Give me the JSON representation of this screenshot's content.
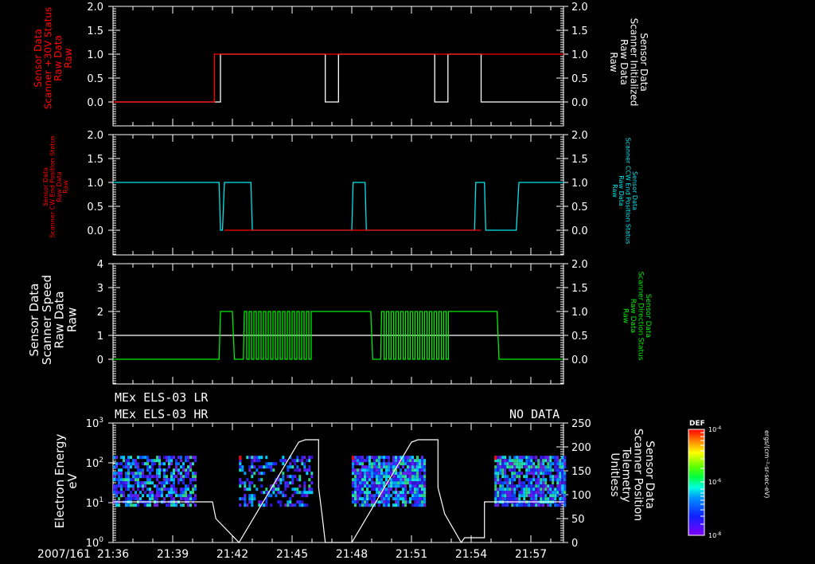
{
  "chart_data": [
    {
      "type": "line",
      "panel": 1,
      "left_ylabel": [
        "Sensor Data",
        "Scanner +30V Status",
        "Raw Data",
        "Raw"
      ],
      "left_ylabel_color": "#ff0000",
      "right_ylabel": [
        "Sensor Data",
        "Scanner Initialized",
        "Raw Data",
        "Raw"
      ],
      "right_ylabel_color": "#ffffff",
      "left_ticks": [
        "2.0",
        "1.5",
        "1.0",
        "0.5",
        "0.0"
      ],
      "right_ticks": [
        "2.0",
        "1.5",
        "1.0",
        "0.5",
        "0.0"
      ],
      "ylim": [
        -0.5,
        2.0
      ],
      "series": [
        {
          "name": "Scanner +30V Status",
          "color": "#ff0000",
          "x": [
            "21:36",
            "21:41:06",
            "21:41:06",
            "21:46:40",
            "21:46:40",
            "21:47:20",
            "21:52:10",
            "21:52:10",
            "21:52:50",
            "21:58:40"
          ],
          "values": [
            0,
            0,
            1,
            1,
            1,
            1,
            1,
            1,
            1,
            1
          ]
        },
        {
          "name": "Scanner Initialized",
          "color": "#ffffff",
          "x": [
            "21:36",
            "21:41:24",
            "21:41:24",
            "21:46:40",
            "21:46:40",
            "21:47:20",
            "21:47:20",
            "21:52:10",
            "21:52:10",
            "21:52:50",
            "21:52:50",
            "21:54:30",
            "21:54:30",
            "21:58:40"
          ],
          "values": [
            0,
            0,
            1,
            1,
            0,
            0,
            1,
            1,
            0,
            0,
            1,
            1,
            0,
            0
          ]
        }
      ]
    },
    {
      "type": "line",
      "panel": 2,
      "left_ylabel": [
        "Sensor Data",
        "Scanner CW End Position Status",
        "Raw Data",
        "Raw"
      ],
      "left_ylabel_color": "#ff0000",
      "right_ylabel": [
        "Sensor Data",
        "Scanner CCW End Position Status",
        "Raw Data",
        "Raw"
      ],
      "right_ylabel_color": "#00e5ee",
      "left_ticks": [
        "2.0",
        "1.5",
        "1.0",
        "0.5",
        "0.0"
      ],
      "right_ticks": [
        "2.0",
        "1.5",
        "1.0",
        "0.5",
        "0.0"
      ],
      "ylim": [
        -0.5,
        2.0
      ],
      "series": [
        {
          "name": "Scanner CW End Position Status",
          "color": "#ff0000",
          "x": [
            "21:41:36",
            "21:42:56",
            "21:48:00",
            "21:48:40",
            "21:54:10",
            "21:54:30"
          ],
          "values": [
            0,
            0,
            0,
            0,
            0,
            0
          ]
        },
        {
          "name": "Scanner CCW End Position Status",
          "color": "#00e5ee",
          "x": [
            "21:36",
            "21:41:20",
            "21:41:24",
            "21:41:30",
            "21:41:36",
            "21:42:56",
            "21:43:00",
            "21:48:00",
            "21:48:04",
            "21:48:40",
            "21:48:44",
            "21:54:10",
            "21:54:14",
            "21:54:40",
            "21:54:44",
            "21:56:16",
            "21:56:24",
            "21:58:40"
          ],
          "values": [
            1,
            1,
            0,
            0,
            1,
            1,
            0,
            0,
            1,
            1,
            0,
            0,
            1,
            1,
            0,
            0,
            1,
            1
          ]
        }
      ]
    },
    {
      "type": "line",
      "panel": 3,
      "left_ylabel": [
        "Sensor Data",
        "Scanner Speed",
        "Raw Data",
        "Raw"
      ],
      "left_ylabel_color": "#ffffff",
      "right_ylabel": [
        "Sensor Data",
        "Scanner Direction Status",
        "Raw Data",
        "Raw"
      ],
      "right_ylabel_color": "#00ee00",
      "left_ticks": [
        "4",
        "3",
        "2",
        "1",
        "0"
      ],
      "right_ticks": [
        "2.0",
        "1.5",
        "1.0",
        "0.5",
        "0.0"
      ],
      "ylim_left": [
        -1,
        4
      ],
      "ylim_right": [
        -0.5,
        2.0
      ],
      "series": [
        {
          "name": "Scanner Speed",
          "color": "#ffffff",
          "x": [
            "21:36",
            "21:58:40"
          ],
          "values": [
            1,
            1
          ]
        },
        {
          "name": "Scanner Direction Status",
          "color": "#00ee00",
          "description": "0 until ~21:41:20, 1 briefly, then rapid toggling 21:42–21:46:00, 1 plateau 21:46–21:48:00, toggling 21:48:30–21:51:30, 1 plateau to 21:54:20, then 0",
          "x": [
            "21:36",
            "21:41:20",
            "21:41:24",
            "21:42:00",
            "21:42:04",
            "21:42:30",
            "21:46:00",
            "21:46:04",
            "21:48:00",
            "21:48:04",
            "21:48:30",
            "21:51:30",
            "21:51:34",
            "21:54:20",
            "21:54:24",
            "21:58:40"
          ],
          "values": [
            0,
            0,
            1,
            1,
            0,
            0,
            0,
            1,
            1,
            0,
            0,
            0,
            1,
            1,
            0,
            0
          ]
        }
      ]
    },
    {
      "type": "heatmap",
      "panel": 4,
      "title_lines": [
        "MEx ELS-03 LR",
        "MEx ELS-03 HR"
      ],
      "annotation": "NO DATA",
      "left_ylabel": [
        "Electron Energy",
        "eV"
      ],
      "right_ylabel": [
        "Sensor Data",
        "Scanner Position",
        "Telemetry",
        "Unitless"
      ],
      "left_ticks": [
        "10^3",
        "10^2",
        "10^1",
        "10^0"
      ],
      "right_ticks": [
        "250",
        "200",
        "150",
        "100",
        "50",
        "0"
      ],
      "ylim_left_log": [
        0,
        3
      ],
      "ylim_right": [
        0,
        250
      ],
      "spectrogram_blocks": [
        {
          "start": "21:36",
          "end": "21:40:10",
          "e_min": 9,
          "e_max": 150
        },
        {
          "start": "21:42:20",
          "end": "21:46:00",
          "e_min": 9,
          "e_max": 150
        },
        {
          "start": "21:48:00",
          "end": "21:51:40",
          "e_min": 9,
          "e_max": 150
        },
        {
          "start": "21:55:10",
          "end": "21:58:40",
          "e_min": 9,
          "e_max": 150
        }
      ],
      "line_series": {
        "name": "Scanner Position",
        "color": "#ffffff",
        "x": [
          "21:36",
          "21:41:00",
          "21:41:00",
          "21:41:10",
          "21:41:10",
          "21:42:20",
          "21:42:20",
          "21:45:20",
          "21:45:40",
          "21:46:20",
          "21:46:20",
          "21:46:30",
          "21:46:40",
          "21:48:00",
          "21:48:00",
          "21:51:00",
          "21:51:20",
          "21:52:20",
          "21:52:20",
          "21:52:40",
          "21:53:30",
          "21:53:40",
          "21:54:40",
          "21:54:40",
          "21:58:40"
        ],
        "values": [
          85,
          85,
          85,
          50,
          50,
          0,
          0,
          210,
          215,
          215,
          115,
          60,
          0,
          0,
          0,
          210,
          215,
          215,
          115,
          60,
          0,
          10,
          10,
          85,
          85
        ]
      },
      "colorbar": {
        "title": "DEF",
        "ticks": [
          "10^-4",
          "10^-6",
          "10^-8"
        ],
        "unit": "ergs/(cm^2-sr-sec-eV)"
      }
    }
  ],
  "xaxis": {
    "date_label": "2007/161",
    "ticks": [
      "21:36",
      "21:39",
      "21:42",
      "21:45",
      "21:48",
      "21:51",
      "21:54",
      "21:57"
    ]
  },
  "labels": {
    "p4_title1": "MEx ELS-03 LR",
    "p4_title2": "MEx ELS-03 HR",
    "no_data": "NO DATA",
    "colorbar_title": "DEF",
    "colorbar_unit": "ergs/(cm⁻²-sr-sec-eV)",
    "date_time_first": "2007/161 21:36"
  }
}
